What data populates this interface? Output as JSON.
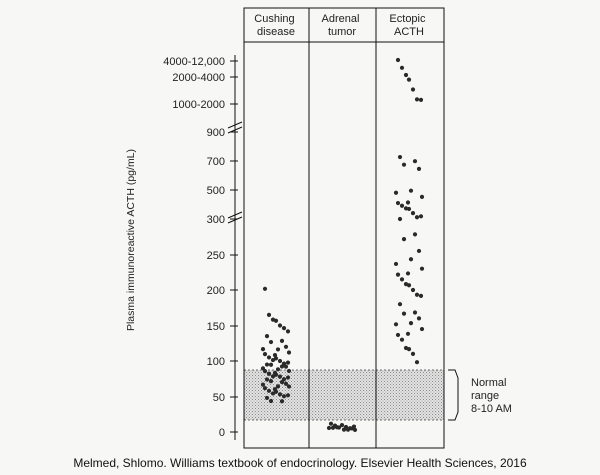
{
  "chart_data": {
    "type": "scatter",
    "ylabel": "Plasma immunoreactive ACTH (pg/mL)",
    "y_ticks": [
      "0",
      "50",
      "100",
      "150",
      "200",
      "250",
      "300",
      "500",
      "700",
      "900",
      "1000-2000",
      "2000-4000",
      "4000-12,000"
    ],
    "y_scale": "broken (segmented)",
    "categories": [
      {
        "lines": [
          "Cushing",
          "disease"
        ]
      },
      {
        "lines": [
          "Adrenal",
          "tumor"
        ]
      },
      {
        "lines": [
          "Ectopic",
          "ACTH"
        ]
      }
    ],
    "normal_range": {
      "low": 15,
      "high": 85,
      "label_lines": [
        "Normal",
        "range",
        "8-10 AM"
      ]
    },
    "series": [
      {
        "category": "Cushing disease",
        "values": [
          200,
          165,
          160,
          155,
          150,
          148,
          140,
          135,
          130,
          125,
          120,
          118,
          115,
          112,
          110,
          108,
          105,
          103,
          102,
          100,
          98,
          96,
          95,
          94,
          93,
          92,
          90,
          88,
          86,
          85,
          84,
          82,
          80,
          79,
          78,
          76,
          75,
          74,
          72,
          70,
          68,
          66,
          65,
          64,
          62,
          60,
          58,
          56,
          55,
          53,
          52,
          50,
          48,
          45,
          42
        ]
      },
      {
        "category": "Adrenal tumor",
        "values": [
          10,
          9,
          8,
          8,
          7,
          7,
          6,
          6,
          5,
          5,
          5,
          5,
          4,
          3
        ]
      },
      {
        "category": "Ectopic ACTH",
        "values": [
          6000,
          3200,
          2200,
          1800,
          1500,
          1200,
          1100,
          720,
          700,
          660,
          640,
          500,
          470,
          450,
          420,
          400,
          390,
          380,
          360,
          340,
          320,
          310,
          300,
          280,
          270,
          255,
          245,
          235,
          230,
          225,
          220,
          215,
          210,
          205,
          200,
          195,
          190,
          180,
          170,
          165,
          160,
          155,
          150,
          145,
          140,
          135,
          130,
          120,
          115,
          110,
          100
        ]
      }
    ]
  },
  "citation": "Melmed, Shlomo. Williams textbook of endocrinology. Elsevier Health Sciences, 2016"
}
